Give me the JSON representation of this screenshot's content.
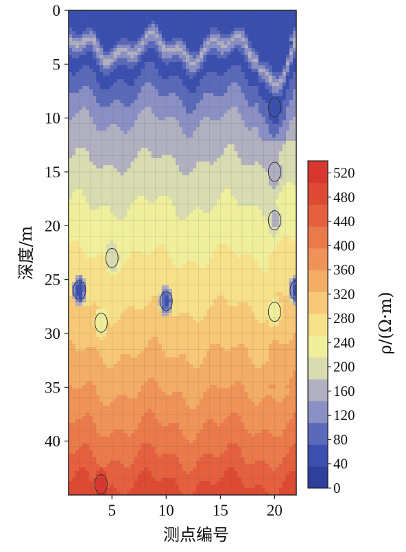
{
  "chart_data": {
    "type": "heatmap",
    "xlabel": "测点编号",
    "ylabel": "深度/m",
    "colorbar_label": "ρ/(Ω·m)",
    "xlim": [
      1,
      22
    ],
    "ylim": [
      0,
      45
    ],
    "x_ticks": [
      5,
      10,
      15,
      20
    ],
    "y_ticks": [
      0,
      5,
      10,
      15,
      20,
      25,
      30,
      35,
      40
    ],
    "colorbar_ticks": [
      0,
      40,
      80,
      120,
      160,
      200,
      240,
      280,
      320,
      360,
      400,
      440,
      480,
      520
    ],
    "colorbar_range": [
      0,
      540
    ],
    "grid": true,
    "colors": [
      "#2e3f9c",
      "#3b4fae",
      "#5a69b8",
      "#8a8fc4",
      "#b0b0c0",
      "#d8dcb0",
      "#f0ef9c",
      "#f7e08a",
      "#f6c877",
      "#f3ad66",
      "#ef9358",
      "#ea7a4b",
      "#e4603e",
      "#dd4a34",
      "#d7372e"
    ],
    "depth_profile": {
      "depths": [
        0,
        1.5,
        2.5,
        3.5,
        5,
        7,
        8.5,
        10,
        12,
        14,
        16,
        18,
        20,
        22,
        24,
        26,
        28,
        30,
        32,
        34,
        36,
        38,
        40,
        42,
        44,
        45
      ],
      "resistivity": [
        60,
        50,
        70,
        160,
        60,
        80,
        120,
        140,
        165,
        180,
        200,
        215,
        230,
        245,
        260,
        275,
        290,
        310,
        325,
        345,
        365,
        390,
        410,
        440,
        470,
        490
      ]
    },
    "anomalies": [
      {
        "x": 2,
        "depth": 26,
        "resistivity": 40
      },
      {
        "x": 10,
        "depth": 27,
        "resistivity": 60
      },
      {
        "x": 5,
        "depth": 23,
        "resistivity": 180
      },
      {
        "x": 4,
        "depth": 29,
        "resistivity": 220
      },
      {
        "x": 20,
        "depth": 19.5,
        "resistivity": 170
      },
      {
        "x": 20,
        "depth": 15,
        "resistivity": 150
      },
      {
        "x": 20,
        "depth": 28,
        "resistivity": 230
      },
      {
        "x": 20,
        "depth": 9,
        "resistivity": 60
      },
      {
        "x": 22,
        "depth": 26,
        "resistivity": 40
      },
      {
        "x": 4,
        "depth": 44,
        "resistivity": 520
      }
    ]
  }
}
